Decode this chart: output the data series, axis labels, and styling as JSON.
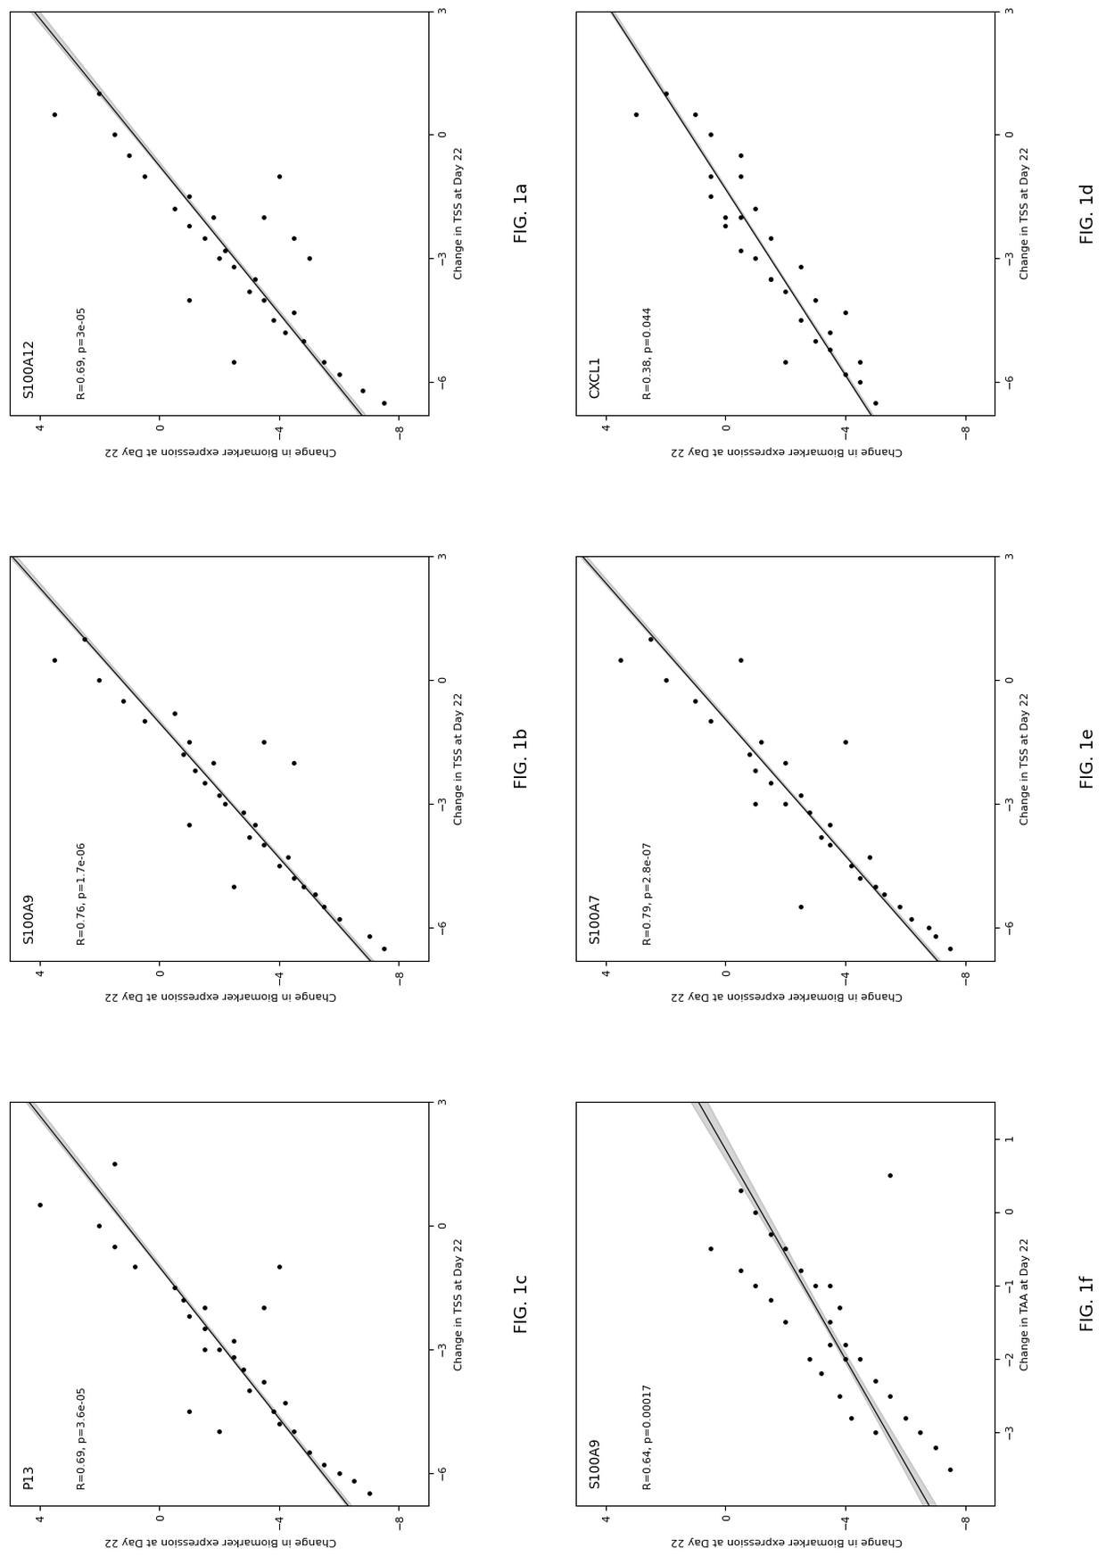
{
  "plots": [
    {
      "title": "S100A12",
      "stat_label": "R=0.69, p=3e-05",
      "xvar_label": "Change in TSS at Day 22",
      "yvar_label": "Change in Biomarker expression at Day 22",
      "fig_label": "FIG. 1a",
      "xlim": [
        -6.8,
        3
      ],
      "ylim": [
        -9,
        5
      ],
      "xticks": [
        3,
        0,
        -3,
        -6
      ],
      "yticks": [
        4,
        0,
        -4,
        -8
      ],
      "scatter_x": [
        -6.5,
        -6.2,
        -5.8,
        -5.5,
        -5.0,
        -4.8,
        -4.5,
        -4.3,
        -4.0,
        -3.8,
        -3.5,
        -3.2,
        -3.0,
        -2.8,
        -2.5,
        -2.2,
        -2.0,
        -1.8,
        -1.5,
        -1.0,
        -0.5,
        0.0,
        0.5,
        1.0,
        -5.5,
        -4.0,
        -3.0,
        -1.0,
        -2.0,
        -2.5
      ],
      "scatter_y": [
        -7.5,
        -6.8,
        -6.0,
        -5.5,
        -4.8,
        -4.2,
        -3.8,
        -4.5,
        -3.5,
        -3.0,
        -3.2,
        -2.5,
        -2.0,
        -2.2,
        -1.5,
        -1.0,
        -1.8,
        -0.5,
        -1.0,
        0.5,
        1.0,
        1.5,
        3.5,
        2.0,
        -2.5,
        -1.0,
        -5.0,
        -4.0,
        -3.5,
        -4.5
      ]
    },
    {
      "title": "S100A9",
      "stat_label": "R=0.76, p=1.7e-06",
      "xvar_label": "Change in TSS at Day 22",
      "yvar_label": "Change in Biomarker expression at Day 22",
      "fig_label": "FIG. 1b",
      "xlim": [
        -6.8,
        3
      ],
      "ylim": [
        -9,
        5
      ],
      "xticks": [
        3,
        0,
        -3,
        -6
      ],
      "yticks": [
        4,
        0,
        -4,
        -8
      ],
      "scatter_x": [
        -6.5,
        -6.2,
        -5.8,
        -5.5,
        -5.2,
        -5.0,
        -4.8,
        -4.5,
        -4.3,
        -4.0,
        -3.8,
        -3.5,
        -3.2,
        -3.0,
        -2.8,
        -2.5,
        -2.2,
        -2.0,
        -1.8,
        -1.5,
        -1.0,
        -0.5,
        0.0,
        0.5,
        1.0,
        -5.0,
        -3.5,
        -2.0,
        -1.5,
        -0.8
      ],
      "scatter_y": [
        -7.5,
        -7.0,
        -6.0,
        -5.5,
        -5.2,
        -4.8,
        -4.5,
        -4.0,
        -4.3,
        -3.5,
        -3.0,
        -3.2,
        -2.8,
        -2.2,
        -2.0,
        -1.5,
        -1.2,
        -1.8,
        -0.8,
        -1.0,
        0.5,
        1.2,
        2.0,
        3.5,
        2.5,
        -2.5,
        -1.0,
        -4.5,
        -3.5,
        -0.5
      ]
    },
    {
      "title": "P13",
      "stat_label": "R=0.69, p=3.6e-05",
      "xvar_label": "Change in TSS at Day 22",
      "yvar_label": "Change in Biomarker expression at Day 22",
      "fig_label": "FIG. 1c",
      "xlim": [
        -6.8,
        3
      ],
      "ylim": [
        -9,
        5
      ],
      "xticks": [
        3,
        0,
        -3,
        -6
      ],
      "yticks": [
        4,
        0,
        -4,
        -8
      ],
      "scatter_x": [
        -6.5,
        -6.2,
        -6.0,
        -5.8,
        -5.5,
        -5.0,
        -4.8,
        -4.5,
        -4.3,
        -4.0,
        -3.8,
        -3.5,
        -3.2,
        -3.0,
        -2.8,
        -2.5,
        -2.2,
        -2.0,
        -1.8,
        -1.5,
        -1.0,
        -0.5,
        0.0,
        0.5,
        1.5,
        -5.0,
        -3.0,
        -2.0,
        -1.0,
        -4.5
      ],
      "scatter_y": [
        -7.0,
        -6.5,
        -6.0,
        -5.5,
        -5.0,
        -4.5,
        -4.0,
        -3.8,
        -4.2,
        -3.0,
        -3.5,
        -2.8,
        -2.5,
        -2.0,
        -2.5,
        -1.5,
        -1.0,
        -1.5,
        -0.8,
        -0.5,
        0.8,
        1.5,
        2.0,
        4.0,
        1.5,
        -2.0,
        -1.5,
        -3.5,
        -4.0,
        -1.0
      ]
    },
    {
      "title": "CXCL1",
      "stat_label": "R=0.38, p=0.044",
      "xvar_label": "Change in TSS at Day 22",
      "yvar_label": "Change in Biomarker expression at Day 22",
      "fig_label": "FIG. 1d",
      "xlim": [
        -6.8,
        3
      ],
      "ylim": [
        -9,
        5
      ],
      "xticks": [
        3,
        0,
        -3,
        -6
      ],
      "yticks": [
        4,
        0,
        -4,
        -8
      ],
      "scatter_x": [
        -6.5,
        -6.0,
        -5.8,
        -5.5,
        -5.2,
        -5.0,
        -4.8,
        -4.5,
        -4.3,
        -4.0,
        -3.8,
        -3.5,
        -3.2,
        -3.0,
        -2.8,
        -2.5,
        -2.2,
        -2.0,
        -1.8,
        -1.5,
        -1.0,
        -0.5,
        0.0,
        0.5,
        1.0,
        -5.5,
        -3.5,
        -2.0,
        -1.0,
        0.5
      ],
      "scatter_y": [
        -5.0,
        -4.5,
        -4.0,
        -4.5,
        -3.5,
        -3.0,
        -3.5,
        -2.5,
        -4.0,
        -3.0,
        -2.0,
        -1.5,
        -2.5,
        -1.0,
        -0.5,
        -1.5,
        0.0,
        -0.5,
        -1.0,
        0.5,
        0.5,
        -0.5,
        0.5,
        1.0,
        2.0,
        -2.0,
        -1.5,
        0.0,
        -0.5,
        3.0
      ]
    },
    {
      "title": "S100A7",
      "stat_label": "R=0.79, p=2.8e-07",
      "xvar_label": "Change in TSS at Day 22",
      "yvar_label": "Change in Biomarker expression at Day 22",
      "fig_label": "FIG. 1e",
      "xlim": [
        -6.8,
        3
      ],
      "ylim": [
        -9,
        5
      ],
      "xticks": [
        3,
        0,
        -3,
        -6
      ],
      "yticks": [
        4,
        0,
        -4,
        -8
      ],
      "scatter_x": [
        -6.5,
        -6.2,
        -6.0,
        -5.8,
        -5.5,
        -5.2,
        -5.0,
        -4.8,
        -4.5,
        -4.3,
        -4.0,
        -3.8,
        -3.5,
        -3.2,
        -3.0,
        -2.8,
        -2.5,
        -2.2,
        -2.0,
        -1.8,
        -1.5,
        -1.0,
        -0.5,
        0.0,
        0.5,
        1.0,
        -5.5,
        -3.0,
        -1.5,
        0.5
      ],
      "scatter_y": [
        -7.5,
        -7.0,
        -6.8,
        -6.2,
        -5.8,
        -5.3,
        -5.0,
        -4.5,
        -4.2,
        -4.8,
        -3.5,
        -3.2,
        -3.5,
        -2.8,
        -2.0,
        -2.5,
        -1.5,
        -1.0,
        -2.0,
        -0.8,
        -1.2,
        0.5,
        1.0,
        2.0,
        3.5,
        2.5,
        -2.5,
        -1.0,
        -4.0,
        -0.5
      ]
    },
    {
      "title": "S100A9",
      "stat_label": "R=0.64, p=0.00017",
      "xvar_label": "Change in TAA at Day 22",
      "yvar_label": "Change in Biomarker expression at Day 22",
      "fig_label": "FIG. 1f",
      "xlim": [
        -4,
        1.5
      ],
      "ylim": [
        -9,
        5
      ],
      "xticks": [
        1,
        0,
        -1,
        -2,
        -3
      ],
      "yticks": [
        4,
        0,
        -4,
        -8
      ],
      "scatter_x": [
        -3.5,
        -3.2,
        -3.0,
        -2.8,
        -2.5,
        -2.3,
        -2.0,
        -1.8,
        -1.5,
        -1.3,
        -1.0,
        -0.8,
        -0.5,
        -0.3,
        0.0,
        0.3,
        -2.8,
        -2.5,
        -2.2,
        -2.0,
        -1.8,
        -1.5,
        -1.2,
        -1.0,
        -0.8,
        -0.5,
        -3.0,
        -2.0,
        -1.0,
        0.5
      ],
      "scatter_y": [
        -7.5,
        -7.0,
        -6.5,
        -6.0,
        -5.5,
        -5.0,
        -4.5,
        -4.0,
        -3.5,
        -3.8,
        -3.0,
        -2.5,
        -2.0,
        -1.5,
        -1.0,
        -0.5,
        -4.2,
        -3.8,
        -3.2,
        -2.8,
        -3.5,
        -2.0,
        -1.5,
        -1.0,
        -0.5,
        0.5,
        -5.0,
        -4.0,
        -3.5,
        -5.5
      ]
    }
  ],
  "background_color": "#ffffff",
  "dot_color": "#000000",
  "line_color": "#000000",
  "band_color": "#888888",
  "band_alpha": 0.35,
  "dot_size": 12,
  "font_size": 8,
  "title_font_size": 10,
  "fig_label_font_size": 13
}
